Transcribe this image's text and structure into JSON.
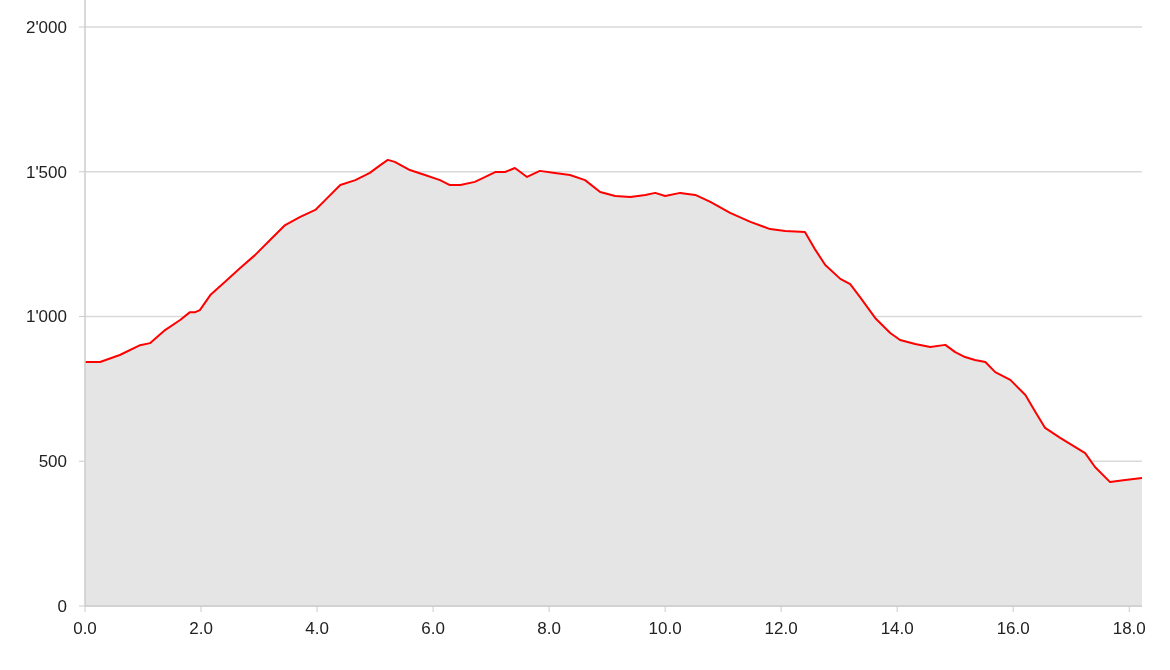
{
  "chart_data": {
    "type": "area",
    "xlim": [
      0,
      18.22
    ],
    "ylim": [
      0,
      2000
    ],
    "xticks": [
      {
        "value": 0,
        "label": "0.0"
      },
      {
        "value": 2,
        "label": "2.0"
      },
      {
        "value": 4,
        "label": "4.0"
      },
      {
        "value": 6,
        "label": "6.0"
      },
      {
        "value": 8,
        "label": "8.0"
      },
      {
        "value": 10,
        "label": "10.0"
      },
      {
        "value": 12,
        "label": "12.0"
      },
      {
        "value": 14,
        "label": "14.0"
      },
      {
        "value": 16,
        "label": "16.0"
      },
      {
        "value": 18,
        "label": "18.0"
      }
    ],
    "yticks": [
      0,
      500,
      {
        "value": 1000,
        "label": "1'000"
      },
      {
        "value": 1500,
        "label": "1'500"
      },
      {
        "value": 2000,
        "label": "2'000"
      }
    ],
    "grid": "y",
    "series": [
      {
        "color": "#ff0000",
        "x": [
          0,
          0.26,
          0.6,
          0.95,
          1.12,
          1.38,
          1.64,
          1.81,
          1.9,
          1.98,
          2.16,
          2.41,
          2.67,
          2.93,
          3.19,
          3.45,
          3.71,
          3.97,
          4.14,
          4.4,
          4.66,
          4.91,
          5.09,
          5.22,
          5.34,
          5.6,
          5.86,
          6.12,
          6.29,
          6.47,
          6.72,
          6.9,
          7.07,
          7.24,
          7.41,
          7.62,
          7.84,
          8.1,
          8.36,
          8.62,
          8.88,
          9.14,
          9.4,
          9.66,
          9.83,
          10.0,
          10.26,
          10.52,
          10.78,
          11.12,
          11.47,
          11.81,
          12.07,
          12.41,
          12.59,
          12.76,
          13.02,
          13.19,
          13.36,
          13.62,
          13.88,
          14.05,
          14.31,
          14.57,
          14.83,
          15.0,
          15.17,
          15.34,
          15.52,
          15.69,
          15.95,
          16.21,
          16.38,
          16.55,
          16.81,
          17.24,
          17.41,
          17.67,
          17.93,
          18.22
        ],
        "values": [
          843,
          843,
          867,
          901,
          908,
          953,
          988,
          1015,
          1015,
          1022,
          1074,
          1119,
          1167,
          1212,
          1264,
          1316,
          1344,
          1368,
          1402,
          1454,
          1471,
          1496,
          1523,
          1541,
          1534,
          1506,
          1489,
          1471,
          1454,
          1454,
          1465,
          1482,
          1499,
          1499,
          1513,
          1482,
          1503,
          1496,
          1489,
          1471,
          1430,
          1416,
          1413,
          1420,
          1427,
          1416,
          1427,
          1420,
          1396,
          1358,
          1327,
          1302,
          1295,
          1292,
          1230,
          1178,
          1130,
          1112,
          1067,
          995,
          943,
          919,
          905,
          895,
          902,
          877,
          860,
          850,
          843,
          808,
          781,
          729,
          671,
          615,
          581,
          528,
          480,
          428,
          435,
          442
        ]
      }
    ]
  }
}
